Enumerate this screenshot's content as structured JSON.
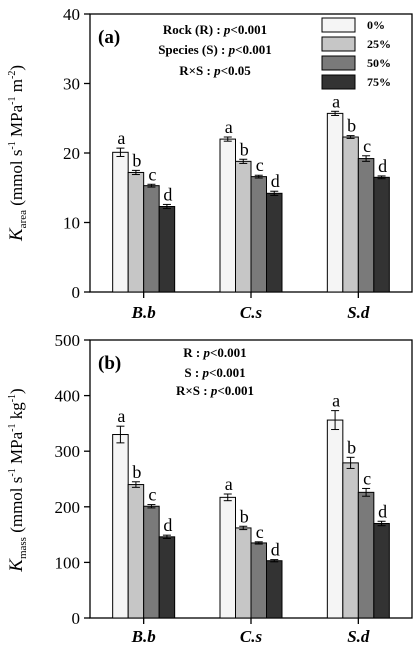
{
  "colors": {
    "0%": "#f5f5f5",
    "25%": "#c6c6c6",
    "50%": "#7a7a7a",
    "75%": "#333333"
  },
  "chart_data": [
    {
      "type": "bar",
      "panel_label": "(a)",
      "categories": [
        "B.b",
        "C.s",
        "S.d"
      ],
      "series": [
        {
          "name": "0%",
          "values": [
            20.1,
            22.0,
            25.7
          ],
          "errors": [
            0.6,
            0.3,
            0.3
          ],
          "letters": [
            "a",
            "a",
            "a"
          ]
        },
        {
          "name": "25%",
          "values": [
            17.2,
            18.8,
            22.3
          ],
          "errors": [
            0.3,
            0.3,
            0.2
          ],
          "letters": [
            "b",
            "b",
            "b"
          ]
        },
        {
          "name": "50%",
          "values": [
            15.3,
            16.6,
            19.2
          ],
          "errors": [
            0.2,
            0.2,
            0.4
          ],
          "letters": [
            "c",
            "c",
            "c"
          ]
        },
        {
          "name": "75%",
          "values": [
            12.3,
            14.2,
            16.5
          ],
          "errors": [
            0.3,
            0.3,
            0.2
          ],
          "letters": [
            "d",
            "d",
            "d"
          ]
        }
      ],
      "ylim": [
        0,
        40
      ],
      "yticks": [
        0,
        10,
        20,
        30,
        40
      ],
      "ylabel": {
        "main": "K",
        "sub": "area",
        "unit_open": " (mmol s",
        "sup1": "-1",
        "unit_mid": " MPa",
        "sup2": "-1",
        "unit_mid2": " m",
        "sup3": "-2",
        "unit_close": ")"
      },
      "annotations": [
        "Rock (R) : p<0.001",
        "Species (S) : p<0.001",
        "R×S : p<0.05"
      ],
      "legend": [
        "0%",
        "25%",
        "50%",
        "75%"
      ],
      "legend_position": "top-right"
    },
    {
      "type": "bar",
      "panel_label": "(b)",
      "categories": [
        "B.b",
        "C.s",
        "S.d"
      ],
      "series": [
        {
          "name": "0%",
          "values": [
            330,
            217,
            356
          ],
          "errors": [
            15,
            6,
            17
          ],
          "letters": [
            "a",
            "a",
            "a"
          ]
        },
        {
          "name": "25%",
          "values": [
            240,
            162,
            279
          ],
          "errors": [
            5,
            3,
            10
          ],
          "letters": [
            "b",
            "b",
            "b"
          ]
        },
        {
          "name": "50%",
          "values": [
            201,
            135,
            226
          ],
          "errors": [
            3,
            2,
            7
          ],
          "letters": [
            "c",
            "c",
            "c"
          ]
        },
        {
          "name": "75%",
          "values": [
            146,
            103,
            170
          ],
          "errors": [
            3,
            2,
            4
          ],
          "letters": [
            "d",
            "d",
            "d"
          ]
        }
      ],
      "ylim": [
        0,
        500
      ],
      "yticks": [
        0,
        100,
        200,
        300,
        400,
        500
      ],
      "ylabel": {
        "main": "K",
        "sub": "mass",
        "unit_open": " (mmol s",
        "sup1": "-1",
        "unit_mid": " MPa",
        "sup2": "-1",
        "unit_mid2": " kg",
        "sup3": "-1",
        "unit_close": ")"
      },
      "annotations": [
        "R : p<0.001",
        "S : p<0.001",
        "R×S : p<0.001"
      ]
    }
  ]
}
